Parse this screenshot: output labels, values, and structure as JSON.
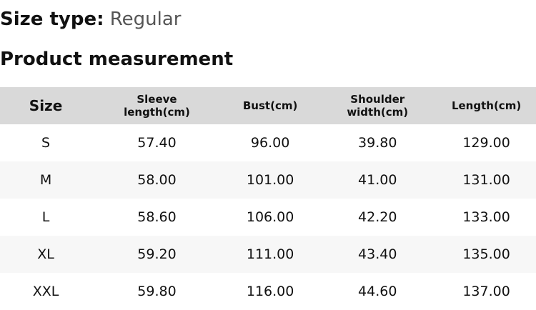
{
  "size_type": {
    "label": "Size type:",
    "value": "Regular"
  },
  "title": "Product measurement",
  "headers": [
    "Size",
    "Sleeve length(cm)",
    "Bust(cm)",
    "Shoulder width(cm)",
    "Length(cm)"
  ],
  "rows": [
    [
      "S",
      "57.40",
      "96.00",
      "39.80",
      "129.00"
    ],
    [
      "M",
      "58.00",
      "101.00",
      "41.00",
      "131.00"
    ],
    [
      "L",
      "58.60",
      "106.00",
      "42.20",
      "133.00"
    ],
    [
      "XL",
      "59.20",
      "111.00",
      "43.40",
      "135.00"
    ],
    [
      "XXL",
      "59.80",
      "116.00",
      "44.60",
      "137.00"
    ]
  ]
}
